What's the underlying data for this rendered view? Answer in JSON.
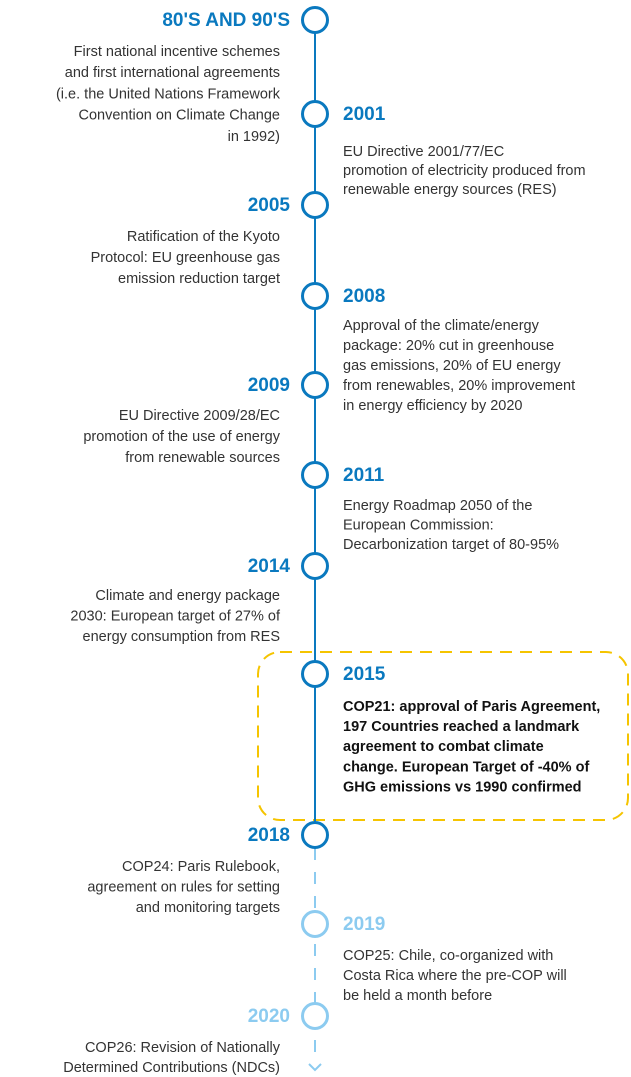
{
  "events": [
    {
      "year": "80'S AND 90'S",
      "lines": [
        "First national incentive schemes",
        "and first international agreements",
        "(i.e. the United Nations Framework",
        "Convention on Climate Change",
        "in 1992)"
      ]
    },
    {
      "year": "2001",
      "lines": [
        "EU Directive 2001/77/EC",
        "promotion of electricity produced from",
        "renewable energy sources (RES)"
      ]
    },
    {
      "year": "2005",
      "lines": [
        "Ratification of the Kyoto",
        "Protocol: EU greenhouse gas",
        "emission reduction target"
      ]
    },
    {
      "year": "2008",
      "lines": [
        "Approval of the climate/energy",
        "package: 20% cut in greenhouse",
        "gas emissions, 20% of EU energy",
        "from renewables, 20% improvement",
        "in energy efficiency by 2020"
      ]
    },
    {
      "year": "2009",
      "lines": [
        "EU Directive 2009/28/EC",
        "promotion of the use of energy",
        "from renewable sources"
      ]
    },
    {
      "year": "2011",
      "lines": [
        "Energy Roadmap 2050 of the",
        "European Commission:",
        "Decarbonization target of 80-95%"
      ]
    },
    {
      "year": "2014",
      "lines": [
        "Climate and energy package",
        "2030: European target of 27% of",
        "energy consumption from RES"
      ]
    },
    {
      "year": "2015",
      "lines": [
        "COP21: approval of Paris Agreement,",
        "197 Countries reached a landmark",
        "agreement to combat climate",
        "change. European Target of -40% of",
        "GHG emissions vs 1990 confirmed"
      ]
    },
    {
      "year": "2018",
      "lines": [
        "COP24: Paris Rulebook,",
        "agreement on rules for setting",
        "and monitoring targets"
      ]
    },
    {
      "year": "2019",
      "lines": [
        "COP25: Chile, co-organized with",
        "Costa Rica where the pre-COP will",
        "be held a month before"
      ]
    },
    {
      "year": "2020",
      "lines": [
        "COP26: Revision of Nationally",
        "Determined Contributions (NDCs)"
      ]
    }
  ]
}
